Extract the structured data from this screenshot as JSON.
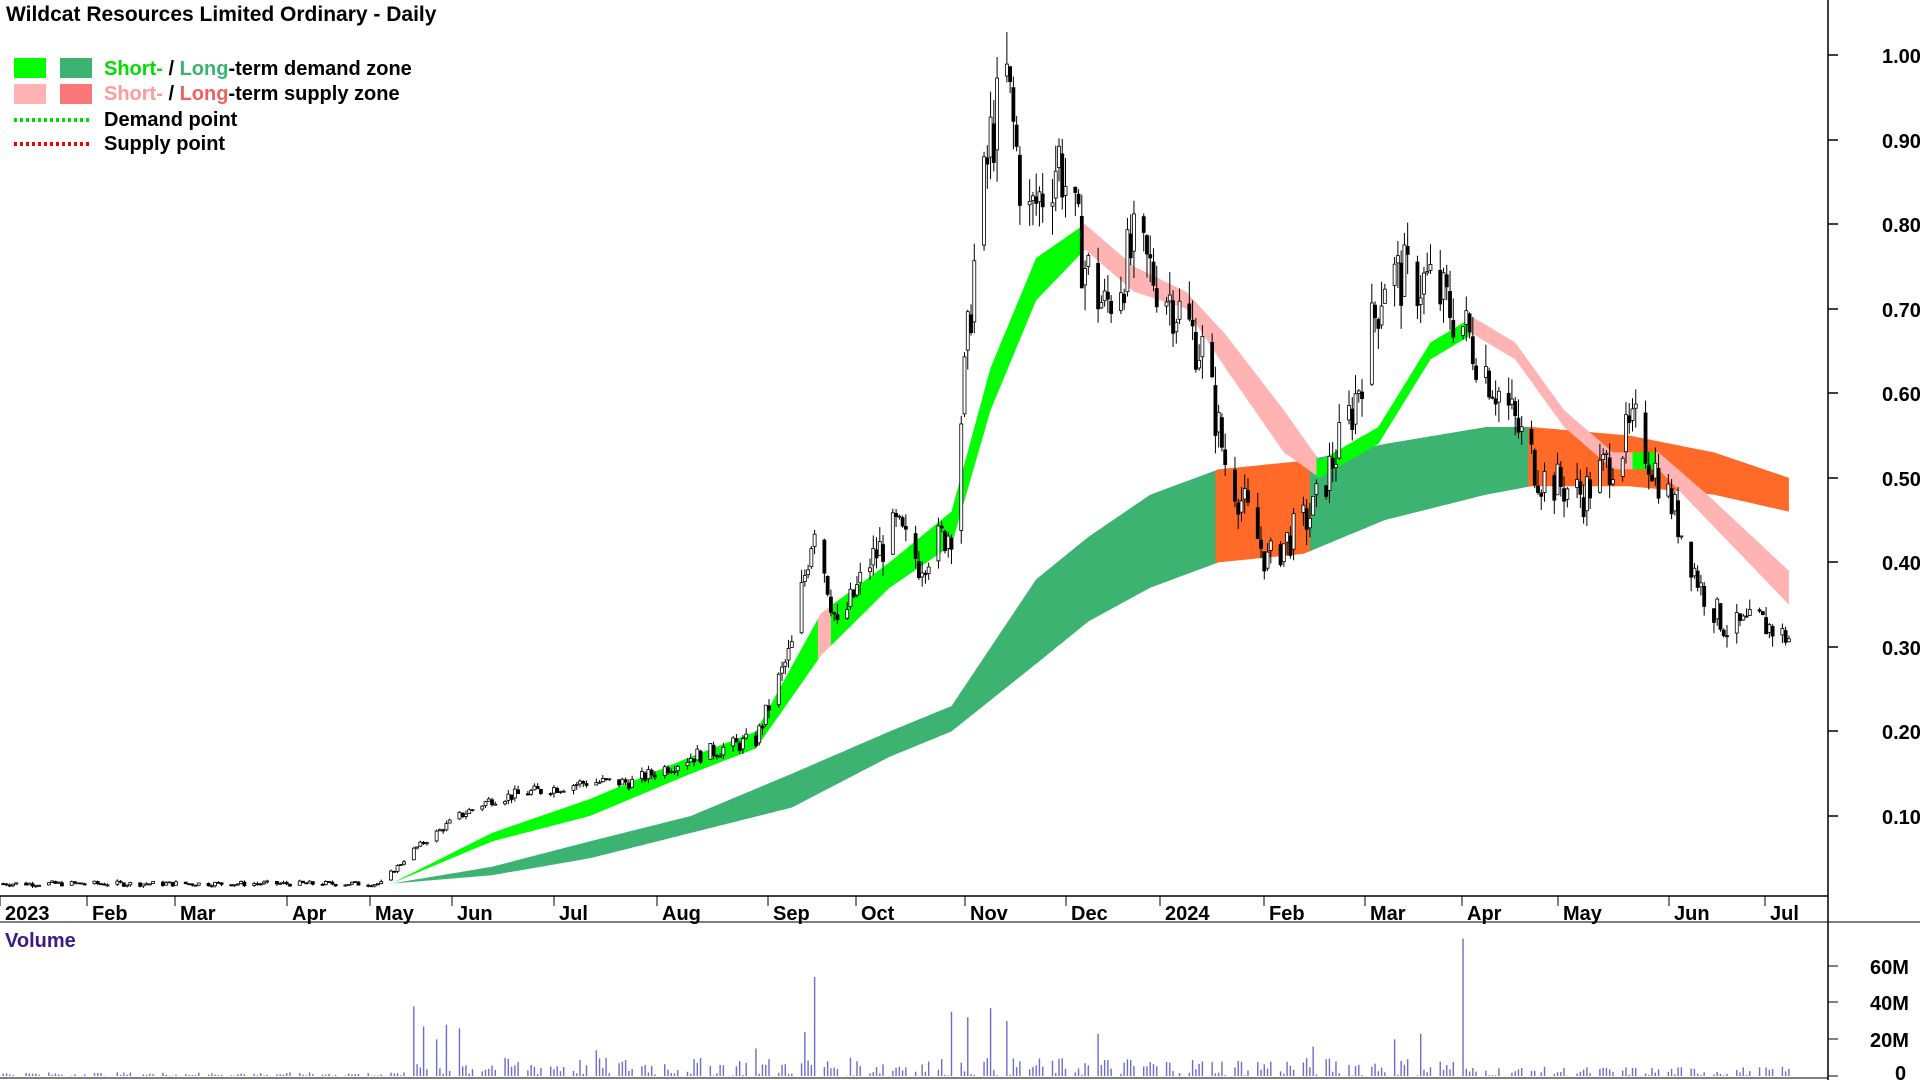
{
  "header": {
    "title": "Wildcat Resources Limited Ordinary - Daily"
  },
  "legend": {
    "row1": {
      "short": "Short-",
      "sep": " / ",
      "long": "Long",
      "rest": "-term demand zone"
    },
    "row2": {
      "short": "Short-",
      "sep": " / ",
      "long": "Long",
      "rest": "-term supply zone"
    },
    "row3": "Demand point",
    "row4": "Supply point"
  },
  "colors": {
    "short_demand": "#00ff00",
    "long_demand": "#3cb371",
    "short_supply": "#ffb3b3",
    "long_supply": "#ff6a28",
    "demand_point": "#00dd00",
    "supply_point": "#ee0000",
    "volume_bar": "#6b6bd0",
    "candle": "#000000"
  },
  "price_axis": {
    "ticks": [
      "1.00",
      "0.90",
      "0.80",
      "0.70",
      "0.60",
      "0.50",
      "0.40",
      "0.30",
      "0.20",
      "0.10"
    ]
  },
  "time_axis": {
    "labels": [
      "2023",
      "Feb",
      "Mar",
      "Apr",
      "May",
      "Jun",
      "Jul",
      "Aug",
      "Sep",
      "Oct",
      "Nov",
      "Dec",
      "2024",
      "Feb",
      "Mar",
      "Apr",
      "May",
      "Jun",
      "Jul"
    ]
  },
  "volume_panel": {
    "title": "Volume",
    "ticks": [
      "60M",
      "40M",
      "20M",
      "0"
    ]
  },
  "chart_data": {
    "type": "candlestick",
    "title": "Wildcat Resources Limited Ordinary - Daily",
    "price_range": [
      0.0,
      1.03
    ],
    "volume_range_millions": [
      0,
      75
    ],
    "price_path": [
      [
        "2023-01-02",
        0.02
      ],
      [
        "2023-04-28",
        0.02
      ],
      [
        "2023-05-08",
        0.06
      ],
      [
        "2023-05-22",
        0.1
      ],
      [
        "2023-06-01",
        0.12
      ],
      [
        "2023-06-30",
        0.14
      ],
      [
        "2023-07-14",
        0.14
      ],
      [
        "2023-08-01",
        0.17
      ],
      [
        "2023-08-21",
        0.19
      ],
      [
        "2023-09-01",
        0.3
      ],
      [
        "2023-09-08",
        0.45
      ],
      [
        "2023-09-15",
        0.32
      ],
      [
        "2023-09-25",
        0.4
      ],
      [
        "2023-10-03",
        0.44
      ],
      [
        "2023-10-10",
        0.4
      ],
      [
        "2023-10-20",
        0.44
      ],
      [
        "2023-10-27",
        0.75
      ],
      [
        "2023-11-01",
        0.9
      ],
      [
        "2023-11-06",
        0.97
      ],
      [
        "2023-11-12",
        0.8
      ],
      [
        "2023-11-22",
        0.88
      ],
      [
        "2023-11-30",
        0.75
      ],
      [
        "2023-12-06",
        0.7
      ],
      [
        "2023-12-15",
        0.77
      ],
      [
        "2023-12-27",
        0.71
      ],
      [
        "2024-01-05",
        0.65
      ],
      [
        "2024-01-12",
        0.52
      ],
      [
        "2024-01-25",
        0.4
      ],
      [
        "2024-02-08",
        0.46
      ],
      [
        "2024-02-20",
        0.58
      ],
      [
        "2024-03-01",
        0.74
      ],
      [
        "2024-03-15",
        0.73
      ],
      [
        "2024-03-25",
        0.68
      ],
      [
        "2024-04-08",
        0.58
      ],
      [
        "2024-04-18",
        0.5
      ],
      [
        "2024-05-01",
        0.48
      ],
      [
        "2024-05-17",
        0.56
      ],
      [
        "2024-05-28",
        0.47
      ],
      [
        "2024-06-06",
        0.37
      ],
      [
        "2024-06-14",
        0.32
      ],
      [
        "2024-06-24",
        0.33
      ],
      [
        "2024-07-03",
        0.31
      ]
    ],
    "short_term_band": [
      [
        "2023-05-01",
        0.02,
        0.02
      ],
      [
        "2023-06-01",
        0.07,
        0.08
      ],
      [
        "2023-07-01",
        0.1,
        0.12
      ],
      [
        "2023-08-01",
        0.15,
        0.17
      ],
      [
        "2023-08-21",
        0.18,
        0.2
      ],
      [
        "2023-09-10",
        0.29,
        0.34
      ],
      [
        "2023-10-01",
        0.37,
        0.4
      ],
      [
        "2023-10-20",
        0.42,
        0.46
      ],
      [
        "2023-11-01",
        0.58,
        0.63
      ],
      [
        "2023-11-15",
        0.71,
        0.76
      ],
      [
        "2023-11-30",
        0.77,
        0.8
      ],
      [
        "2023-12-15",
        0.72,
        0.75
      ],
      [
        "2023-12-31",
        0.7,
        0.72
      ],
      [
        "2024-01-12",
        0.63,
        0.67
      ],
      [
        "2024-01-30",
        0.53,
        0.58
      ],
      [
        "2024-02-10",
        0.5,
        0.52
      ],
      [
        "2024-02-28",
        0.54,
        0.56
      ],
      [
        "2024-03-15",
        0.64,
        0.66
      ],
      [
        "2024-03-28",
        0.67,
        0.69
      ],
      [
        "2024-04-10",
        0.64,
        0.66
      ],
      [
        "2024-04-25",
        0.56,
        0.58
      ],
      [
        "2024-05-10",
        0.51,
        0.53
      ],
      [
        "2024-05-24",
        0.51,
        0.53
      ],
      [
        "2024-06-08",
        0.45,
        0.48
      ],
      [
        "2024-07-03",
        0.35,
        0.39
      ]
    ],
    "short_term_band_state": [
      [
        "2023-05-01",
        "demand"
      ],
      [
        "2023-09-10",
        "supply"
      ],
      [
        "2023-09-14",
        "demand"
      ],
      [
        "2023-11-30",
        "supply"
      ],
      [
        "2024-02-10",
        "demand"
      ],
      [
        "2024-03-28",
        "supply"
      ],
      [
        "2024-05-17",
        "demand"
      ],
      [
        "2024-05-24",
        "supply"
      ]
    ],
    "long_term_band": [
      [
        "2023-05-01",
        0.02,
        0.02
      ],
      [
        "2023-06-01",
        0.03,
        0.04
      ],
      [
        "2023-07-01",
        0.05,
        0.07
      ],
      [
        "2023-08-01",
        0.08,
        0.1
      ],
      [
        "2023-09-01",
        0.11,
        0.15
      ],
      [
        "2023-10-01",
        0.17,
        0.2
      ],
      [
        "2023-10-20",
        0.2,
        0.23
      ],
      [
        "2023-11-15",
        0.28,
        0.38
      ],
      [
        "2023-12-01",
        0.33,
        0.43
      ],
      [
        "2023-12-20",
        0.37,
        0.48
      ],
      [
        "2024-01-10",
        0.4,
        0.51
      ],
      [
        "2024-02-05",
        0.41,
        0.52
      ],
      [
        "2024-03-01",
        0.45,
        0.54
      ],
      [
        "2024-04-01",
        0.48,
        0.56
      ],
      [
        "2024-04-15",
        0.49,
        0.56
      ],
      [
        "2024-05-15",
        0.49,
        0.55
      ],
      [
        "2024-06-10",
        0.48,
        0.53
      ],
      [
        "2024-07-03",
        0.46,
        0.5
      ]
    ],
    "long_term_band_state": [
      [
        "2023-05-01",
        "demand"
      ],
      [
        "2024-01-10",
        "supply"
      ],
      [
        "2024-02-08",
        "demand"
      ],
      [
        "2024-04-15",
        "supply"
      ]
    ],
    "volume_spikes_millions": [
      [
        "2023-05-08",
        38
      ],
      [
        "2023-05-11",
        27
      ],
      [
        "2023-05-15",
        20
      ],
      [
        "2023-05-18",
        28
      ],
      [
        "2023-05-22",
        26
      ],
      [
        "2023-07-03",
        14
      ],
      [
        "2023-08-21",
        15
      ],
      [
        "2023-09-08",
        54
      ],
      [
        "2023-09-05",
        24
      ],
      [
        "2023-10-20",
        35
      ],
      [
        "2023-10-25",
        32
      ],
      [
        "2023-11-01",
        37
      ],
      [
        "2023-11-06",
        30
      ],
      [
        "2023-12-04",
        23
      ],
      [
        "2024-02-08",
        16
      ],
      [
        "2024-03-04",
        20
      ],
      [
        "2024-03-12",
        23
      ],
      [
        "2024-03-25",
        75
      ]
    ]
  }
}
